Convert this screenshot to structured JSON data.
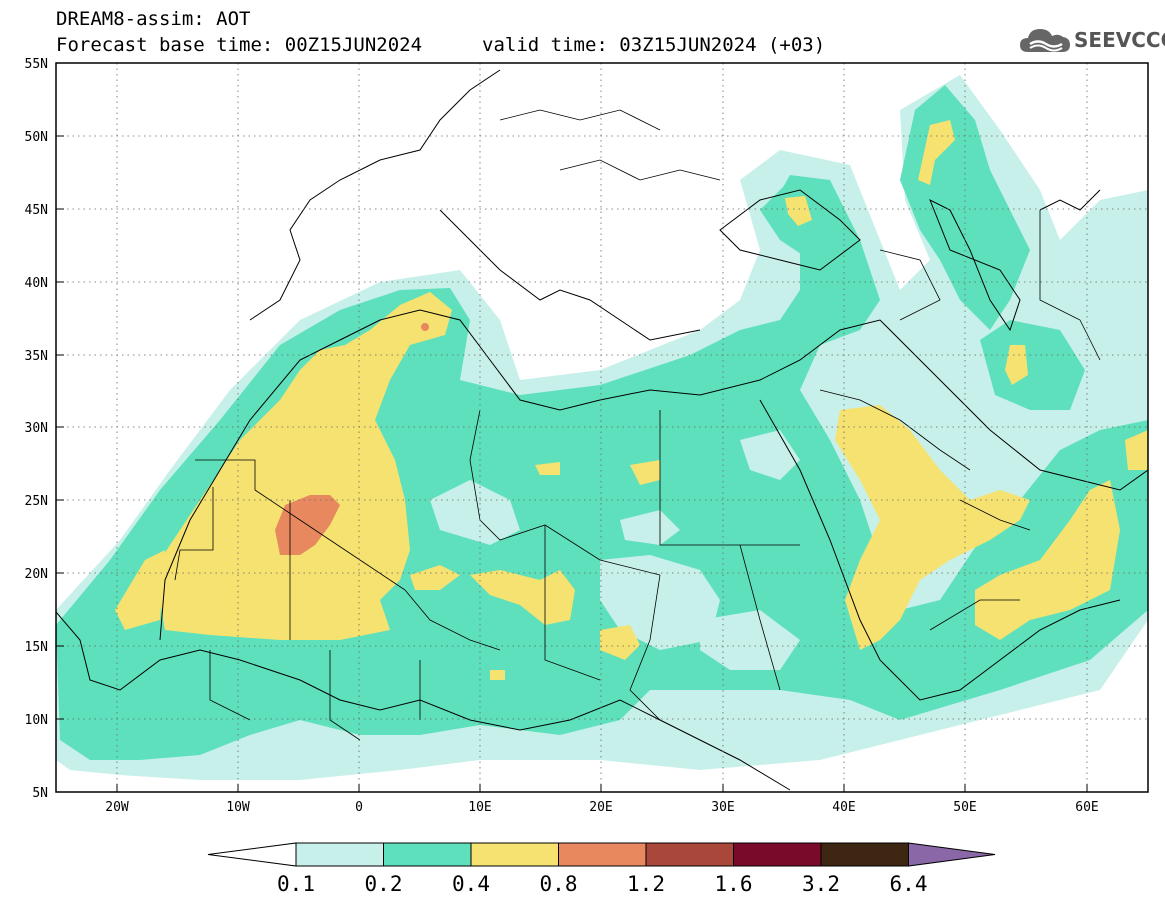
{
  "header": {
    "title_line1": "DREAM8-assim: AOT",
    "title_line2": "Forecast base time: 00Z15JUN2024",
    "valid_time": "valid time: 03Z15JUN2024 (+03)"
  },
  "logo": {
    "text": "SEEVCCC",
    "icon": "cloud-icon"
  },
  "map": {
    "lat_labels": [
      "55N",
      "50N",
      "45N",
      "40N",
      "35N",
      "30N",
      "25N",
      "20N",
      "15N",
      "10N",
      "5N"
    ],
    "lon_labels": [
      "20W",
      "10W",
      "0",
      "10E",
      "20E",
      "30E",
      "40E",
      "50E",
      "60E"
    ],
    "lon_range": [
      -25,
      65
    ],
    "lat_range": [
      5,
      55
    ],
    "grid": "dotted"
  },
  "colorbar": {
    "labels": [
      "0.1",
      "0.2",
      "0.4",
      "0.8",
      "1.2",
      "1.6",
      "3.2",
      "6.4"
    ],
    "colors": [
      "#ffffff",
      "#c8f0ea",
      "#5ee0bc",
      "#f5e271",
      "#e8885f",
      "#a8473a",
      "#7a0a2a",
      "#3d2612",
      "#8a68a8"
    ]
  }
}
